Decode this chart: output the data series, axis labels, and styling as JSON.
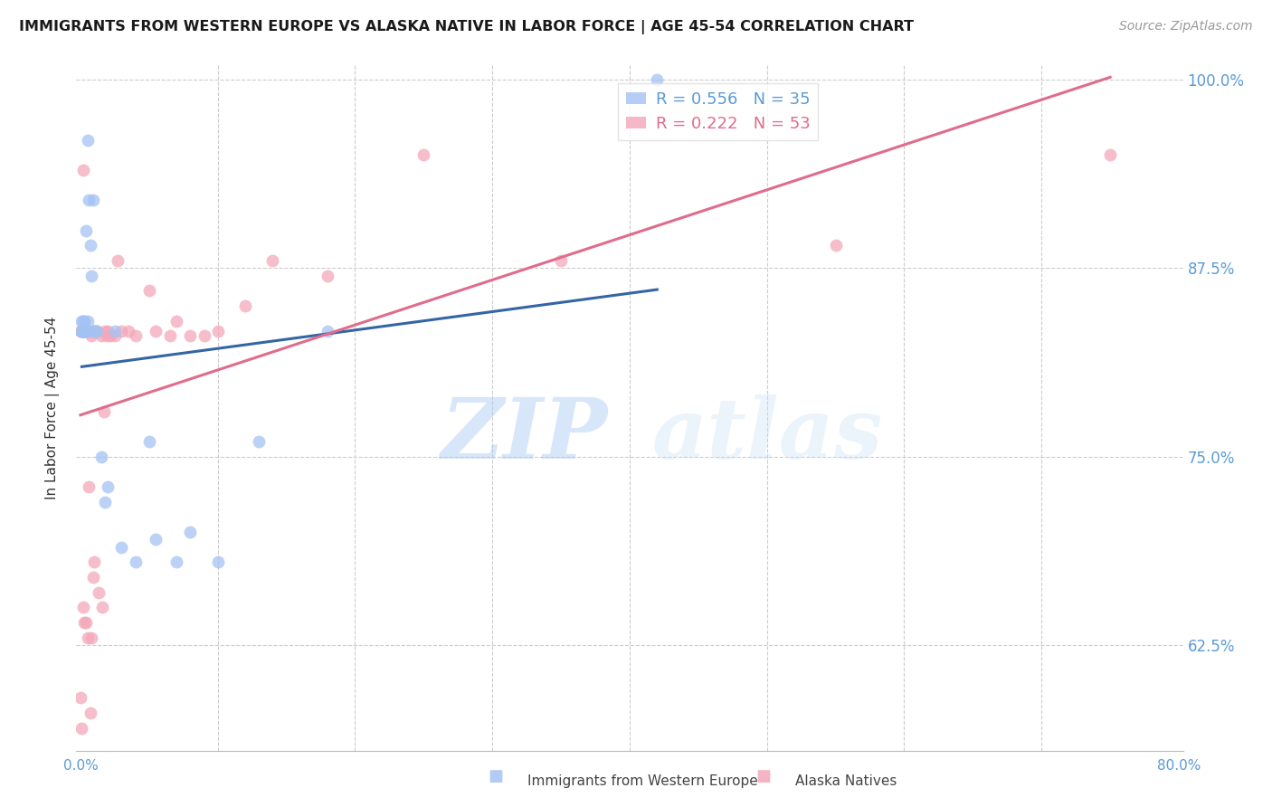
{
  "title": "IMMIGRANTS FROM WESTERN EUROPE VS ALASKA NATIVE IN LABOR FORCE | AGE 45-54 CORRELATION CHART",
  "source": "Source: ZipAtlas.com",
  "ylabel": "In Labor Force | Age 45-54",
  "ytick_labels": [
    "100.0%",
    "87.5%",
    "75.0%",
    "62.5%"
  ],
  "ytick_values": [
    1.0,
    0.875,
    0.75,
    0.625
  ],
  "ymin": 0.555,
  "ymax": 1.01,
  "xmin": -0.003,
  "xmax": 0.803,
  "legend_blue_r": "R = 0.556",
  "legend_blue_n": "N = 35",
  "legend_pink_r": "R = 0.222",
  "legend_pink_n": "N = 53",
  "legend_blue_label": "Immigrants from Western Europe",
  "legend_pink_label": "Alaska Natives",
  "watermark_zip": "ZIP",
  "watermark_atlas": "atlas",
  "blue_color": "#a4c2f4",
  "pink_color": "#f4a7b9",
  "blue_line_color": "#3465a4",
  "pink_line_color": "#e06c8c",
  "scatter_alpha": 0.75,
  "marker_size": 100,
  "blue_scatter_x": [
    0.001,
    0.001,
    0.001,
    0.002,
    0.002,
    0.002,
    0.003,
    0.003,
    0.003,
    0.004,
    0.004,
    0.004,
    0.005,
    0.005,
    0.006,
    0.007,
    0.008,
    0.009,
    0.01,
    0.01,
    0.012,
    0.015,
    0.018,
    0.02,
    0.025,
    0.03,
    0.04,
    0.05,
    0.055,
    0.07,
    0.08,
    0.1,
    0.13,
    0.18,
    0.42
  ],
  "blue_scatter_y": [
    0.833,
    0.84,
    0.833,
    0.833,
    0.84,
    0.833,
    0.833,
    0.833,
    0.84,
    0.833,
    0.9,
    0.833,
    0.96,
    0.84,
    0.92,
    0.89,
    0.87,
    0.92,
    0.833,
    0.833,
    0.833,
    0.75,
    0.72,
    0.73,
    0.833,
    0.69,
    0.68,
    0.76,
    0.695,
    0.68,
    0.7,
    0.68,
    0.76,
    0.833,
    1.0
  ],
  "pink_scatter_x": [
    0.0,
    0.0,
    0.001,
    0.001,
    0.001,
    0.002,
    0.002,
    0.002,
    0.003,
    0.003,
    0.003,
    0.003,
    0.004,
    0.004,
    0.005,
    0.005,
    0.006,
    0.007,
    0.007,
    0.008,
    0.008,
    0.009,
    0.009,
    0.01,
    0.011,
    0.012,
    0.013,
    0.015,
    0.016,
    0.017,
    0.018,
    0.019,
    0.02,
    0.022,
    0.025,
    0.027,
    0.03,
    0.035,
    0.04,
    0.05,
    0.055,
    0.065,
    0.07,
    0.08,
    0.09,
    0.1,
    0.12,
    0.14,
    0.18,
    0.25,
    0.35,
    0.55,
    0.75
  ],
  "pink_scatter_y": [
    0.833,
    0.59,
    0.833,
    0.57,
    0.833,
    0.833,
    0.94,
    0.65,
    0.833,
    0.833,
    0.64,
    0.833,
    0.64,
    0.833,
    0.63,
    0.833,
    0.73,
    0.833,
    0.58,
    0.83,
    0.63,
    0.833,
    0.67,
    0.68,
    0.833,
    0.833,
    0.66,
    0.83,
    0.65,
    0.78,
    0.833,
    0.83,
    0.833,
    0.83,
    0.83,
    0.88,
    0.833,
    0.833,
    0.83,
    0.86,
    0.833,
    0.83,
    0.84,
    0.83,
    0.83,
    0.833,
    0.85,
    0.88,
    0.87,
    0.95,
    0.88,
    0.89,
    0.95
  ],
  "xtick_positions": [
    0.0,
    0.1,
    0.2,
    0.3,
    0.4,
    0.5,
    0.6,
    0.7,
    0.8
  ],
  "xtick_minor_positions": [
    0.1,
    0.2,
    0.3,
    0.4,
    0.5,
    0.6,
    0.7
  ],
  "axis_color": "#5b9bd5",
  "grid_color": "#cccccc",
  "title_fontsize": 11.5,
  "source_fontsize": 10,
  "tick_label_fontsize": 11,
  "ylabel_fontsize": 11
}
